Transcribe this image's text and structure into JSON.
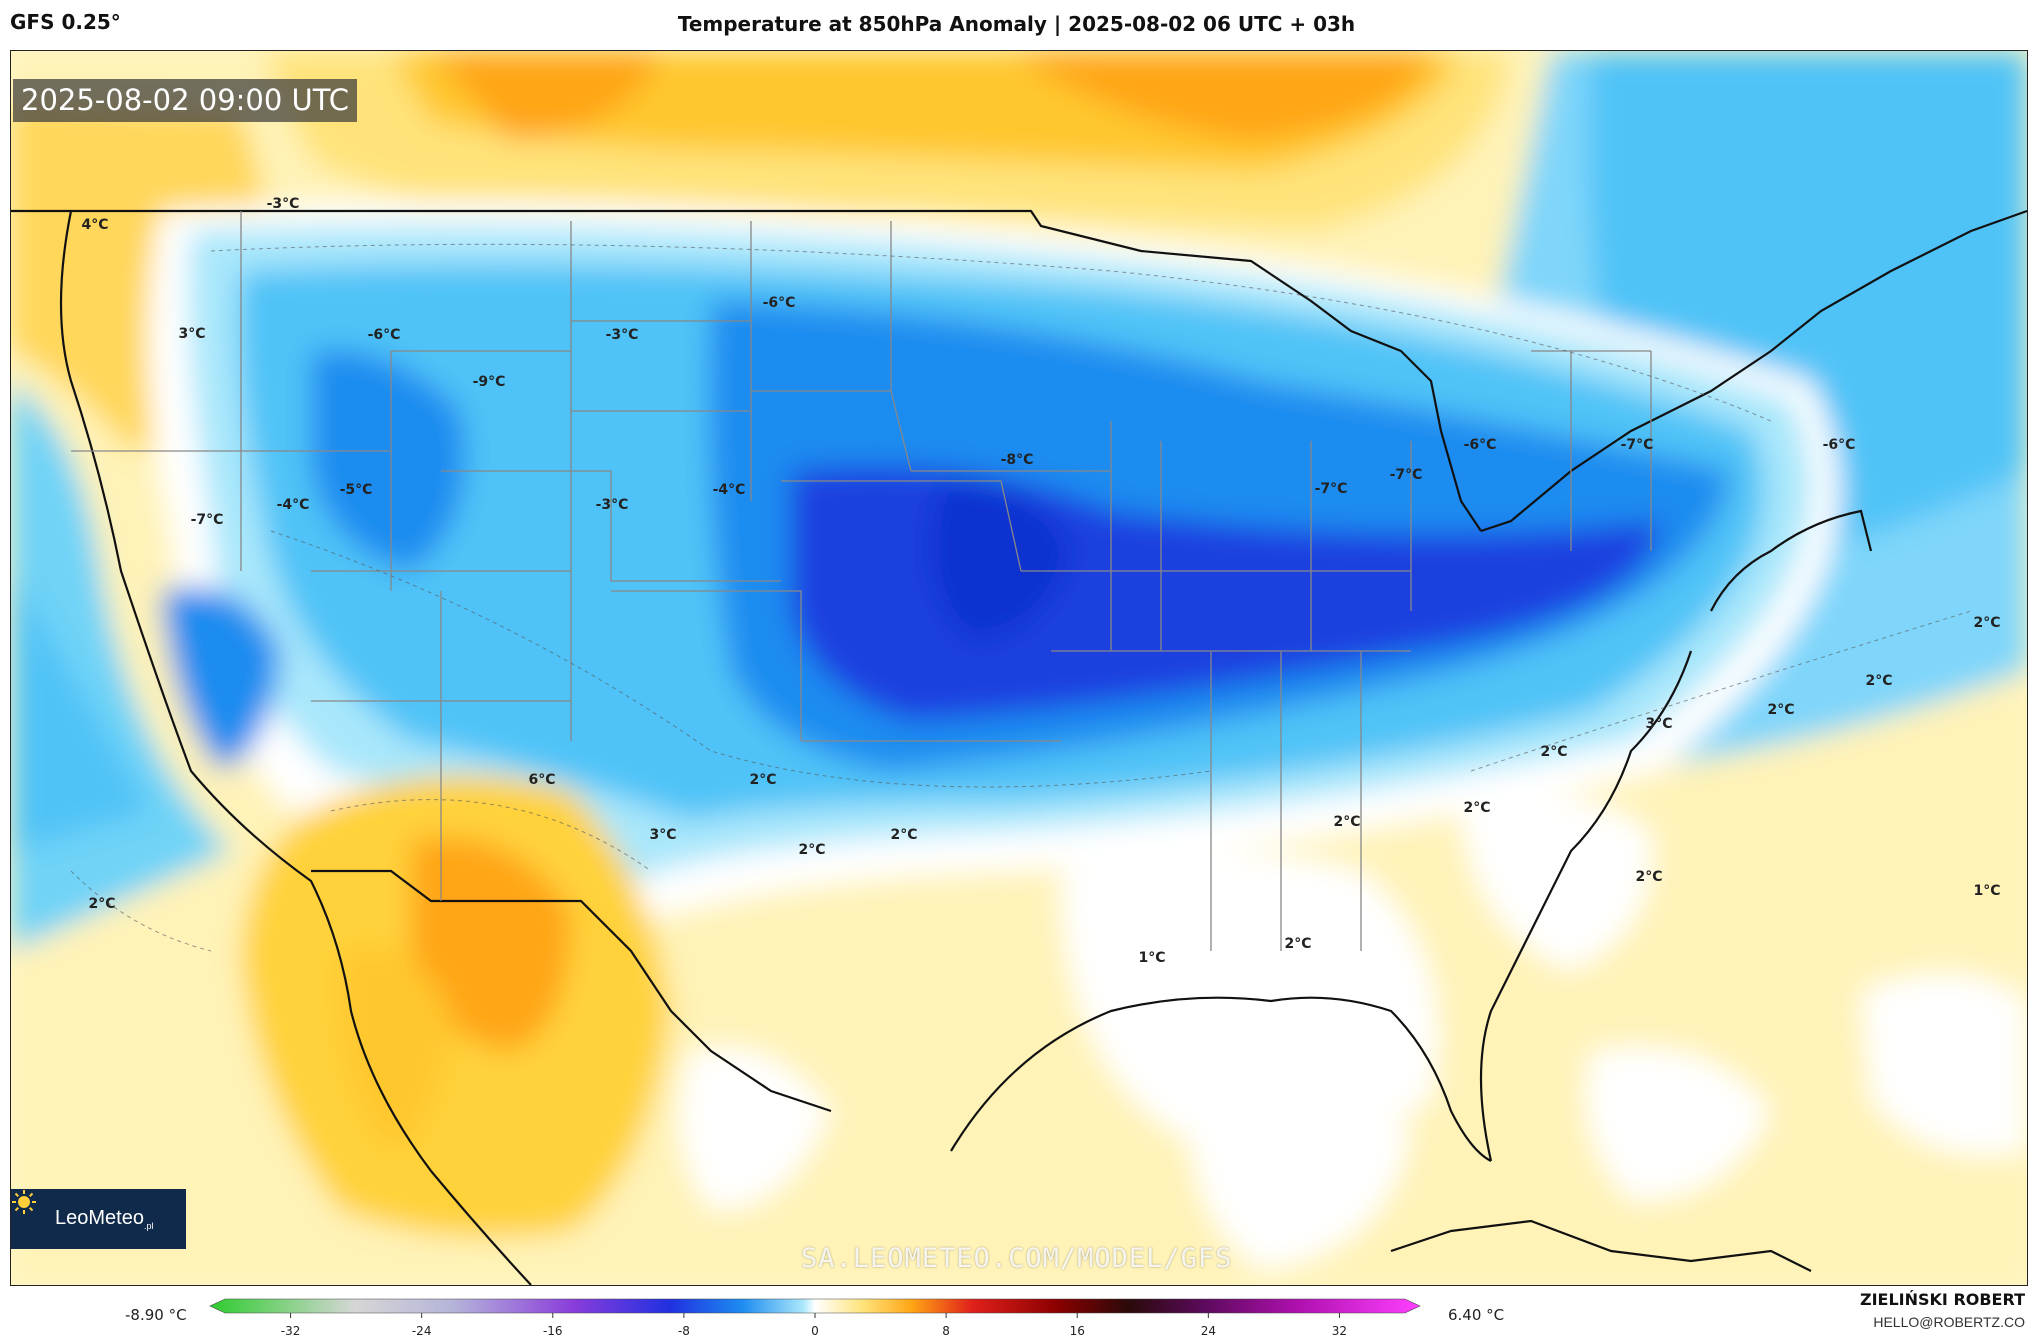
{
  "header": {
    "model": "GFS 0.25°",
    "title": "Temperature at 850hPa Anomaly | 2025-08-02 06 UTC + 03h"
  },
  "map": {
    "timestamp": "2025-08-02 09:00 UTC",
    "watermark": "SA.LEOMETEO.COM/MODEL/GFS",
    "labels": [
      {
        "text": "-3°C"
      },
      {
        "text": "4°C"
      },
      {
        "text": "3°C"
      },
      {
        "text": "-6°C"
      },
      {
        "text": "-9°C"
      },
      {
        "text": "-3°C"
      },
      {
        "text": "-6°C"
      },
      {
        "text": "-7°C"
      },
      {
        "text": "-4°C"
      },
      {
        "text": "-5°C"
      },
      {
        "text": "-3°C"
      },
      {
        "text": "-4°C"
      },
      {
        "text": "-8°C"
      },
      {
        "text": "-7°C"
      },
      {
        "text": "-7°C"
      },
      {
        "text": "-6°C"
      },
      {
        "text": "-7°C"
      },
      {
        "text": "-6°C"
      },
      {
        "text": "6°C"
      },
      {
        "text": "3°C"
      },
      {
        "text": "2°C"
      },
      {
        "text": "2°C"
      },
      {
        "text": "2°C"
      },
      {
        "text": "2°C"
      },
      {
        "text": "1°C"
      },
      {
        "text": "2°C"
      },
      {
        "text": "2°C"
      },
      {
        "text": "2°C"
      },
      {
        "text": "2°C"
      },
      {
        "text": "3°C"
      },
      {
        "text": "2°C"
      },
      {
        "text": "2°C"
      },
      {
        "text": "2°C"
      },
      {
        "text": "1°C"
      },
      {
        "text": "2°C"
      }
    ]
  },
  "logo": {
    "name": "LeoMeteo",
    "suffix": ".pl",
    "icon": "sun-icon"
  },
  "colorbar": {
    "min_value": "-8.90 °C",
    "max_value": "6.40 °C",
    "ticks": [
      "-32",
      "-24",
      "-16",
      "-8",
      "0",
      "8",
      "16",
      "24",
      "32"
    ],
    "tick_values": [
      -32,
      -24,
      -16,
      -8,
      0,
      8,
      16,
      24,
      32
    ],
    "range": [
      -36,
      36
    ]
  },
  "footer": {
    "author": "ZIELIŃSKI ROBERT",
    "email": "HELLO@ROBERTZ.CO"
  },
  "colors": {
    "deep_cold": "#1f3fe0",
    "cold": "#1e8cf0",
    "cool": "#4fc3f7",
    "light_cool": "#a9e7fb",
    "neutral": "#ffffff",
    "light_warm": "#fff3b8",
    "warm": "#ffd23a",
    "hot": "#ffa515"
  }
}
